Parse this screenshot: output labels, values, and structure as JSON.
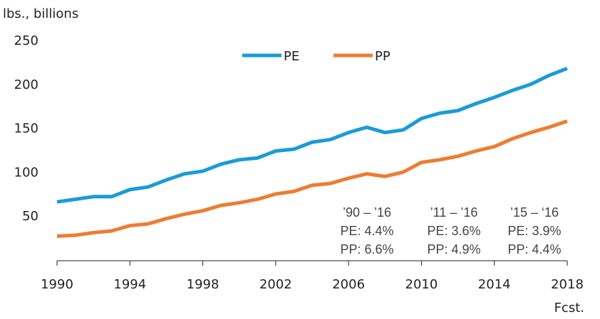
{
  "chart_data": {
    "type": "line",
    "y_axis_label": "lbs., billions",
    "x": [
      1990,
      1991,
      1992,
      1993,
      1994,
      1995,
      1996,
      1997,
      1998,
      1999,
      2000,
      2001,
      2002,
      2003,
      2004,
      2005,
      2006,
      2007,
      2008,
      2009,
      2010,
      2011,
      2012,
      2013,
      2014,
      2015,
      2016,
      2017,
      2018
    ],
    "series": [
      {
        "name": "PE",
        "color": "#1a9bd7",
        "values": [
          67,
          70,
          73,
          73,
          81,
          84,
          92,
          99,
          102,
          110,
          115,
          117,
          125,
          127,
          135,
          138,
          146,
          152,
          146,
          149,
          162,
          168,
          171,
          179,
          186,
          194,
          201,
          211,
          219
        ]
      },
      {
        "name": "PP",
        "color": "#ed7d31",
        "values": [
          28,
          29,
          32,
          34,
          40,
          42,
          48,
          53,
          57,
          63,
          66,
          70,
          76,
          79,
          86,
          88,
          94,
          99,
          96,
          101,
          112,
          115,
          119,
          125,
          130,
          139,
          146,
          152,
          159
        ]
      }
    ],
    "xlim": [
      1990,
      2018
    ],
    "xticks": [
      1990,
      1994,
      1998,
      2002,
      2006,
      2010,
      2014,
      2018
    ],
    "ylim": [
      0,
      250
    ],
    "yticks": [
      50,
      100,
      150,
      200,
      250
    ],
    "x_annotation": "Fcst.",
    "annotations": [
      [
        "’90 – ’16",
        "PE: 4.4%",
        "PP: 6.6%"
      ],
      [
        "’11 – ’16",
        "PE: 3.6%",
        "PP: 4.9%"
      ],
      [
        "’15 – ‘16",
        "PE: 3.9%",
        "PP: 4.4%"
      ]
    ],
    "legend": "top"
  }
}
